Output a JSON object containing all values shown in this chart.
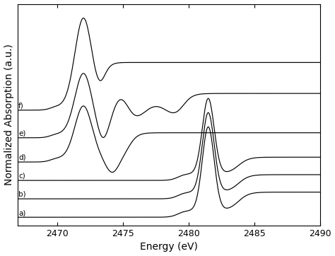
{
  "xlabel": "Energy (eV)",
  "ylabel": "Normalized Absorption (a.u.)",
  "xmin": 2467.0,
  "xmax": 2490.0,
  "xticks": [
    2470,
    2475,
    2480,
    2485,
    2490
  ],
  "labels": [
    "a)",
    "b)",
    "c)",
    "d)",
    "e)",
    "f)"
  ],
  "offsets": [
    0.0,
    0.22,
    0.44,
    0.66,
    0.95,
    1.28
  ],
  "line_color": "#000000",
  "bg_color": "#ffffff",
  "figsize": [
    4.74,
    3.62
  ],
  "dpi": 100
}
